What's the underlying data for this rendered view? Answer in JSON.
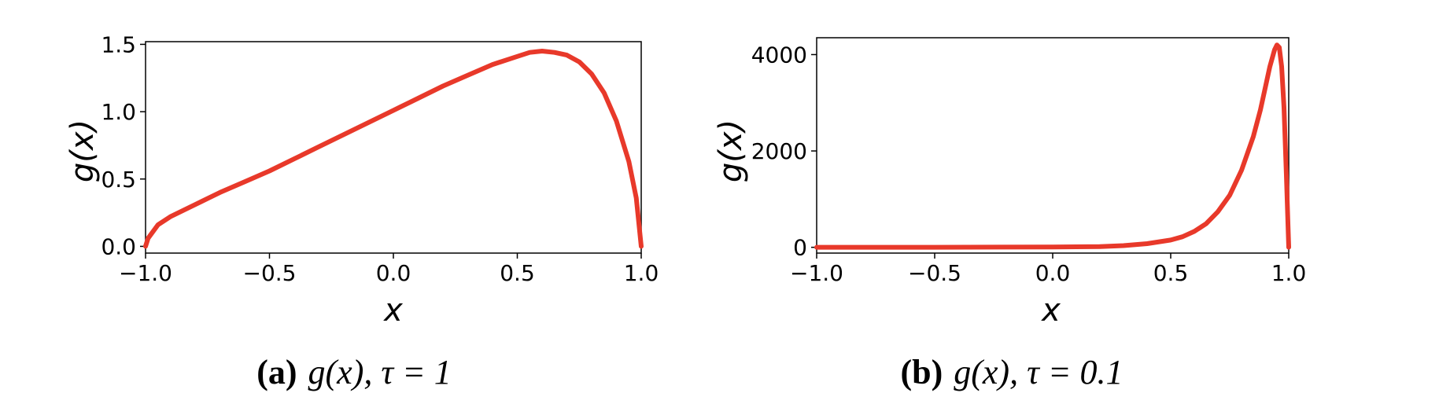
{
  "chart_data": [
    {
      "type": "line",
      "xlabel": "x",
      "ylabel": "g(x)",
      "xlim": [
        -1.0,
        1.0
      ],
      "ylim": [
        -0.05,
        1.52
      ],
      "xticks": [
        -1.0,
        -0.5,
        0.0,
        0.5,
        1.0
      ],
      "xtick_labels": [
        "−1.0",
        "−0.5",
        "0.0",
        "0.5",
        "1.0"
      ],
      "yticks": [
        0.0,
        0.5,
        1.0,
        1.5
      ],
      "ytick_labels": [
        "0.0",
        "0.5",
        "1.0",
        "1.5"
      ],
      "grid": false,
      "color": "#e8392a",
      "series": [
        {
          "x": [
            -1.0,
            -0.99,
            -0.95,
            -0.9,
            -0.8,
            -0.7,
            -0.6,
            -0.5,
            -0.4,
            -0.3,
            -0.2,
            -0.1,
            0.0,
            0.1,
            0.2,
            0.3,
            0.4,
            0.5,
            0.55,
            0.6,
            0.65,
            0.7,
            0.75,
            0.8,
            0.85,
            0.9,
            0.95,
            0.98,
            1.0
          ],
          "y": [
            0.0,
            0.06,
            0.16,
            0.22,
            0.31,
            0.4,
            0.48,
            0.56,
            0.65,
            0.74,
            0.83,
            0.92,
            1.01,
            1.1,
            1.19,
            1.27,
            1.35,
            1.41,
            1.44,
            1.45,
            1.44,
            1.42,
            1.37,
            1.28,
            1.14,
            0.93,
            0.63,
            0.36,
            0.0
          ]
        }
      ]
    },
    {
      "type": "line",
      "xlabel": "x",
      "ylabel": "g(x)",
      "xlim": [
        -1.0,
        1.0
      ],
      "ylim": [
        -120,
        4350
      ],
      "xticks": [
        -1.0,
        -0.5,
        0.0,
        0.5,
        1.0
      ],
      "xtick_labels": [
        "−1.0",
        "−0.5",
        "0.0",
        "0.5",
        "1.0"
      ],
      "yticks": [
        0,
        2000,
        4000
      ],
      "ytick_labels": [
        "0",
        "2000",
        "4000"
      ],
      "grid": false,
      "color": "#e8392a",
      "series": [
        {
          "x": [
            -1.0,
            -0.5,
            0.0,
            0.2,
            0.3,
            0.4,
            0.5,
            0.55,
            0.6,
            0.65,
            0.7,
            0.75,
            0.8,
            0.85,
            0.88,
            0.9,
            0.92,
            0.94,
            0.95,
            0.96,
            0.97,
            0.98,
            0.99,
            1.0
          ],
          "y": [
            0,
            0,
            5,
            15,
            35,
            75,
            150,
            220,
            330,
            490,
            740,
            1080,
            1600,
            2300,
            2850,
            3300,
            3750,
            4100,
            4200,
            4150,
            3750,
            2900,
            1500,
            0
          ]
        }
      ]
    }
  ],
  "captions": [
    {
      "label": "(a)",
      "text": "g(x), τ = 1"
    },
    {
      "label": "(b)",
      "text": "g(x), τ = 0.1"
    }
  ]
}
